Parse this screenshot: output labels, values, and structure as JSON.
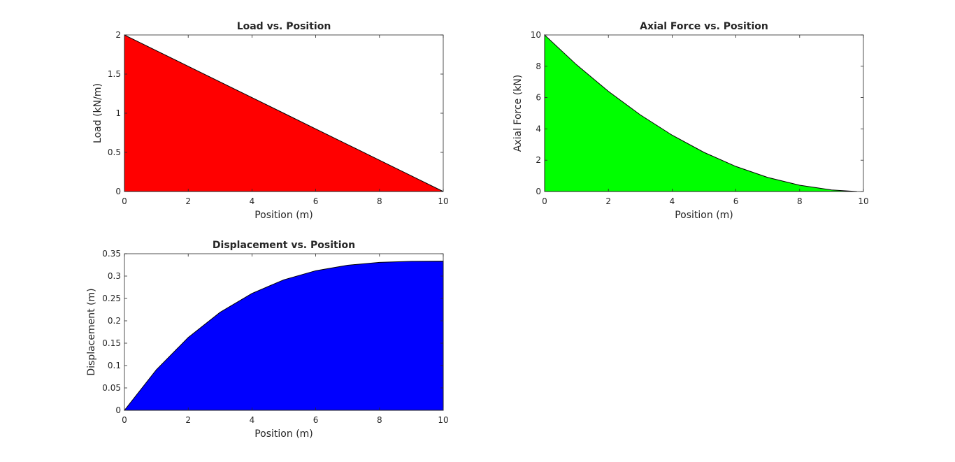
{
  "chart_data": [
    {
      "type": "area",
      "title": "Load vs. Position",
      "xlabel": "Position (m)",
      "ylabel": "Load (kN/m)",
      "xlim": [
        0,
        10
      ],
      "ylim": [
        0,
        2
      ],
      "xticks": [
        0,
        2,
        4,
        6,
        8,
        10
      ],
      "yticks": [
        0,
        0.5,
        1,
        1.5,
        2
      ],
      "xtick_labels": [
        "0",
        "2",
        "4",
        "6",
        "8",
        "10"
      ],
      "ytick_labels": [
        "0",
        "0.5",
        "1",
        "1.5",
        "2"
      ],
      "fill_color": "#ff0000",
      "grid": false,
      "x": [
        0,
        1,
        2,
        3,
        4,
        5,
        6,
        7,
        8,
        9,
        10
      ],
      "y": [
        2,
        1.8,
        1.6,
        1.4,
        1.2,
        1.0,
        0.8,
        0.6,
        0.4,
        0.2,
        0
      ]
    },
    {
      "type": "area",
      "title": "Axial Force vs. Position",
      "xlabel": "Position (m)",
      "ylabel": "Axial Force (kN)",
      "xlim": [
        0,
        10
      ],
      "ylim": [
        0,
        10
      ],
      "xticks": [
        0,
        2,
        4,
        6,
        8,
        10
      ],
      "yticks": [
        0,
        2,
        4,
        6,
        8,
        10
      ],
      "xtick_labels": [
        "0",
        "2",
        "4",
        "6",
        "8",
        "10"
      ],
      "ytick_labels": [
        "0",
        "2",
        "4",
        "6",
        "8",
        "10"
      ],
      "fill_color": "#00ff00",
      "grid": false,
      "x": [
        0,
        1,
        2,
        3,
        4,
        5,
        6,
        7,
        8,
        9,
        9.8
      ],
      "y": [
        10,
        8.1,
        6.4,
        4.9,
        3.6,
        2.5,
        1.6,
        0.9,
        0.4,
        0.1,
        0.0
      ]
    },
    {
      "type": "area",
      "title": "Displacement vs. Position",
      "xlabel": "Position (m)",
      "ylabel": "Displacement (m)",
      "xlim": [
        0,
        10
      ],
      "ylim": [
        0,
        0.35
      ],
      "xticks": [
        0,
        2,
        4,
        6,
        8,
        10
      ],
      "yticks": [
        0,
        0.05,
        0.1,
        0.15,
        0.2,
        0.25,
        0.3,
        0.35
      ],
      "xtick_labels": [
        "0",
        "2",
        "4",
        "6",
        "8",
        "10"
      ],
      "ytick_labels": [
        "0",
        "0.05",
        "0.1",
        "0.15",
        "0.2",
        "0.25",
        "0.3",
        "0.35"
      ],
      "fill_color": "#0000ff",
      "grid": false,
      "x": [
        0,
        1,
        2,
        3,
        4,
        5,
        6,
        7,
        8,
        9,
        10
      ],
      "y": [
        0,
        0.0905,
        0.1627,
        0.219,
        0.2613,
        0.2917,
        0.312,
        0.3243,
        0.3307,
        0.333,
        0.3333
      ]
    }
  ]
}
